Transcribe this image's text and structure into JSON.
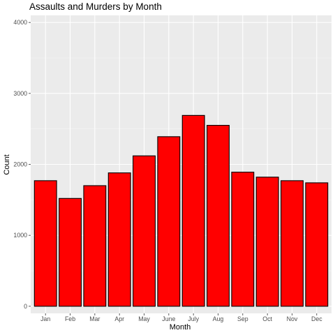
{
  "chart_data": {
    "type": "bar",
    "title": "Assaults and Murders by Month",
    "xlabel": "Month",
    "ylabel": "Count",
    "categories": [
      "Jan",
      "Feb",
      "Mar",
      "Apr",
      "May",
      "June",
      "July",
      "Aug",
      "Sep",
      "Oct",
      "Nov",
      "Dec"
    ],
    "values": [
      1770,
      1520,
      1700,
      1880,
      2120,
      2390,
      2690,
      2550,
      1890,
      1820,
      1770,
      1740
    ],
    "ylim": [
      -100,
      4100
    ],
    "yticks": [
      0,
      1000,
      2000,
      3000,
      4000
    ],
    "grid": true,
    "legend": "none",
    "colors": {
      "bar_fill": "#ff0000",
      "bar_stroke": "#000000",
      "panel_background": "#ebebeb",
      "grid_major": "#ffffff",
      "grid_minor": "#f5f5f5",
      "tick_text": "#4d4d4d"
    }
  }
}
